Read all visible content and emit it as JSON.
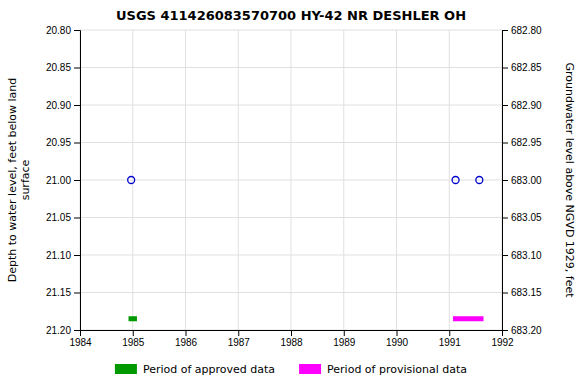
{
  "chart_data": {
    "type": "scatter",
    "title": "USGS 411426083570700 HY-42 NR DESHLER OH",
    "y_label": "Depth to water level, feet below land\nsurface",
    "y2_label": "Groundwater level above NGVD 1929, feet",
    "xlim": [
      1984.0,
      1992.0
    ],
    "xticks": [
      1984,
      1985,
      1986,
      1987,
      1988,
      1989,
      1990,
      1991,
      1992
    ],
    "ylim": [
      21.2,
      20.8
    ],
    "yticks": [
      {
        "value": 20.8,
        "label": "20.80"
      },
      20.85,
      {
        "value": 20.9,
        "label": "20.90"
      },
      20.95,
      {
        "value": 21.0,
        "label": "21.00"
      },
      21.05,
      {
        "value": 21.1,
        "label": "21.10"
      },
      21.15,
      {
        "value": 21.2,
        "label": "21.20"
      }
    ],
    "y2lim": [
      683.2,
      682.8
    ],
    "y2ticks": [
      {
        "value": 683.2,
        "label": "683.20"
      },
      683.15,
      {
        "value": 683.1,
        "label": "683.10"
      },
      683.05,
      {
        "value": 683.0,
        "label": "683.00"
      },
      682.95,
      {
        "value": 682.9,
        "label": "682.90"
      },
      682.85,
      {
        "value": 682.8,
        "label": "682.80"
      }
    ],
    "grid": true,
    "legend": "bottom",
    "series": [
      {
        "type": "scatter",
        "marker": "circle",
        "color": "#0000cc",
        "x": [
          1984.97,
          1991.12,
          1991.57
        ],
        "values": [
          21.0,
          21.0,
          21.0
        ]
      },
      {
        "name": "Period of approved data",
        "type": "line",
        "line_style": "solid",
        "color": "#009900",
        "x": [
          1984.92,
          1985.08
        ],
        "values": [
          21.185,
          21.185
        ]
      },
      {
        "name": "Period of provisional data",
        "type": "line",
        "line_style": "solid",
        "color": "#ff00ff",
        "x": [
          1991.07,
          1991.65
        ],
        "values": [
          21.185,
          21.185
        ]
      }
    ]
  }
}
